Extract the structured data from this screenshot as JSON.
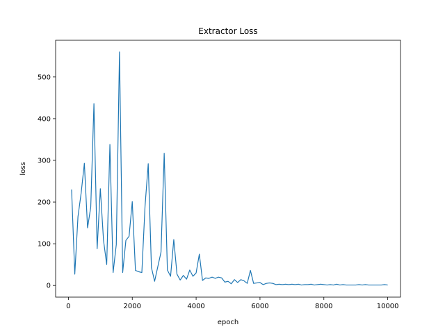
{
  "chart_data": {
    "type": "line",
    "title": "Extractor Loss",
    "xlabel": "epoch",
    "ylabel": "loss",
    "xlim": [
      -400,
      10400
    ],
    "ylim": [
      -28,
      588
    ],
    "x_ticks": [
      0,
      2000,
      4000,
      6000,
      8000,
      10000
    ],
    "y_ticks": [
      0,
      100,
      200,
      300,
      400,
      500
    ],
    "grid": false,
    "series": [
      {
        "color": "#1f77b4",
        "x": [
          100,
          200,
          300,
          400,
          500,
          600,
          700,
          800,
          900,
          1000,
          1100,
          1200,
          1300,
          1400,
          1500,
          1600,
          1700,
          1800,
          1900,
          2000,
          2100,
          2200,
          2300,
          2400,
          2500,
          2600,
          2700,
          2800,
          2900,
          3000,
          3100,
          3200,
          3300,
          3400,
          3500,
          3600,
          3700,
          3800,
          3900,
          4000,
          4100,
          4200,
          4300,
          4400,
          4500,
          4600,
          4700,
          4800,
          4900,
          5000,
          5100,
          5200,
          5300,
          5400,
          5500,
          5600,
          5700,
          5800,
          5900,
          6000,
          6100,
          6200,
          6300,
          6400,
          6500,
          6600,
          6700,
          6800,
          6900,
          7000,
          7100,
          7200,
          7300,
          7400,
          7500,
          7600,
          7700,
          7800,
          7900,
          8000,
          8100,
          8200,
          8300,
          8400,
          8500,
          8600,
          8700,
          8800,
          8900,
          9000,
          9100,
          9200,
          9300,
          9400,
          9500,
          9600,
          9700,
          9800,
          9900,
          10000
        ],
        "y": [
          230,
          27,
          165,
          222,
          293,
          138,
          188,
          436,
          88,
          232,
          108,
          50,
          338,
          31,
          98,
          560,
          31,
          108,
          118,
          201,
          36,
          33,
          31,
          190,
          292,
          43,
          10,
          45,
          80,
          317,
          37,
          22,
          110,
          27,
          13,
          24,
          15,
          37,
          22,
          30,
          75,
          12,
          18,
          17,
          20,
          17,
          20,
          18,
          8,
          10,
          4,
          14,
          7,
          14,
          11,
          5,
          36,
          5,
          6,
          7,
          2,
          5,
          6,
          5,
          2,
          3,
          2,
          3,
          2,
          3,
          2,
          3,
          1,
          2,
          2,
          3,
          1,
          2,
          3,
          2,
          1,
          2,
          1,
          3,
          1,
          2,
          1,
          1,
          1,
          1,
          2,
          1,
          2,
          1,
          1,
          1,
          1,
          1,
          2,
          1
        ]
      }
    ]
  }
}
